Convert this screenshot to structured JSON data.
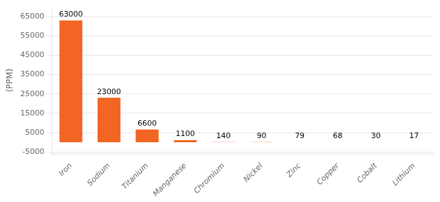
{
  "chart_data": {
    "type": "bar",
    "categories": [
      "Iron",
      "Sodium",
      "Titanium",
      "Manganese",
      "Chromium",
      "Nickel",
      "Zinc",
      "Copper",
      "Cobalt",
      "Lithium"
    ],
    "values": [
      63000,
      23000,
      6600,
      1100,
      140,
      90,
      79,
      68,
      30,
      17
    ],
    "color": "#F26522",
    "ylabel": "(PPM)",
    "ylim": [
      -6000,
      70000
    ],
    "yticks": [
      -5000,
      5000,
      15000,
      25000,
      35000,
      45000,
      55000,
      65000
    ],
    "grid": true,
    "data_labels": true
  }
}
